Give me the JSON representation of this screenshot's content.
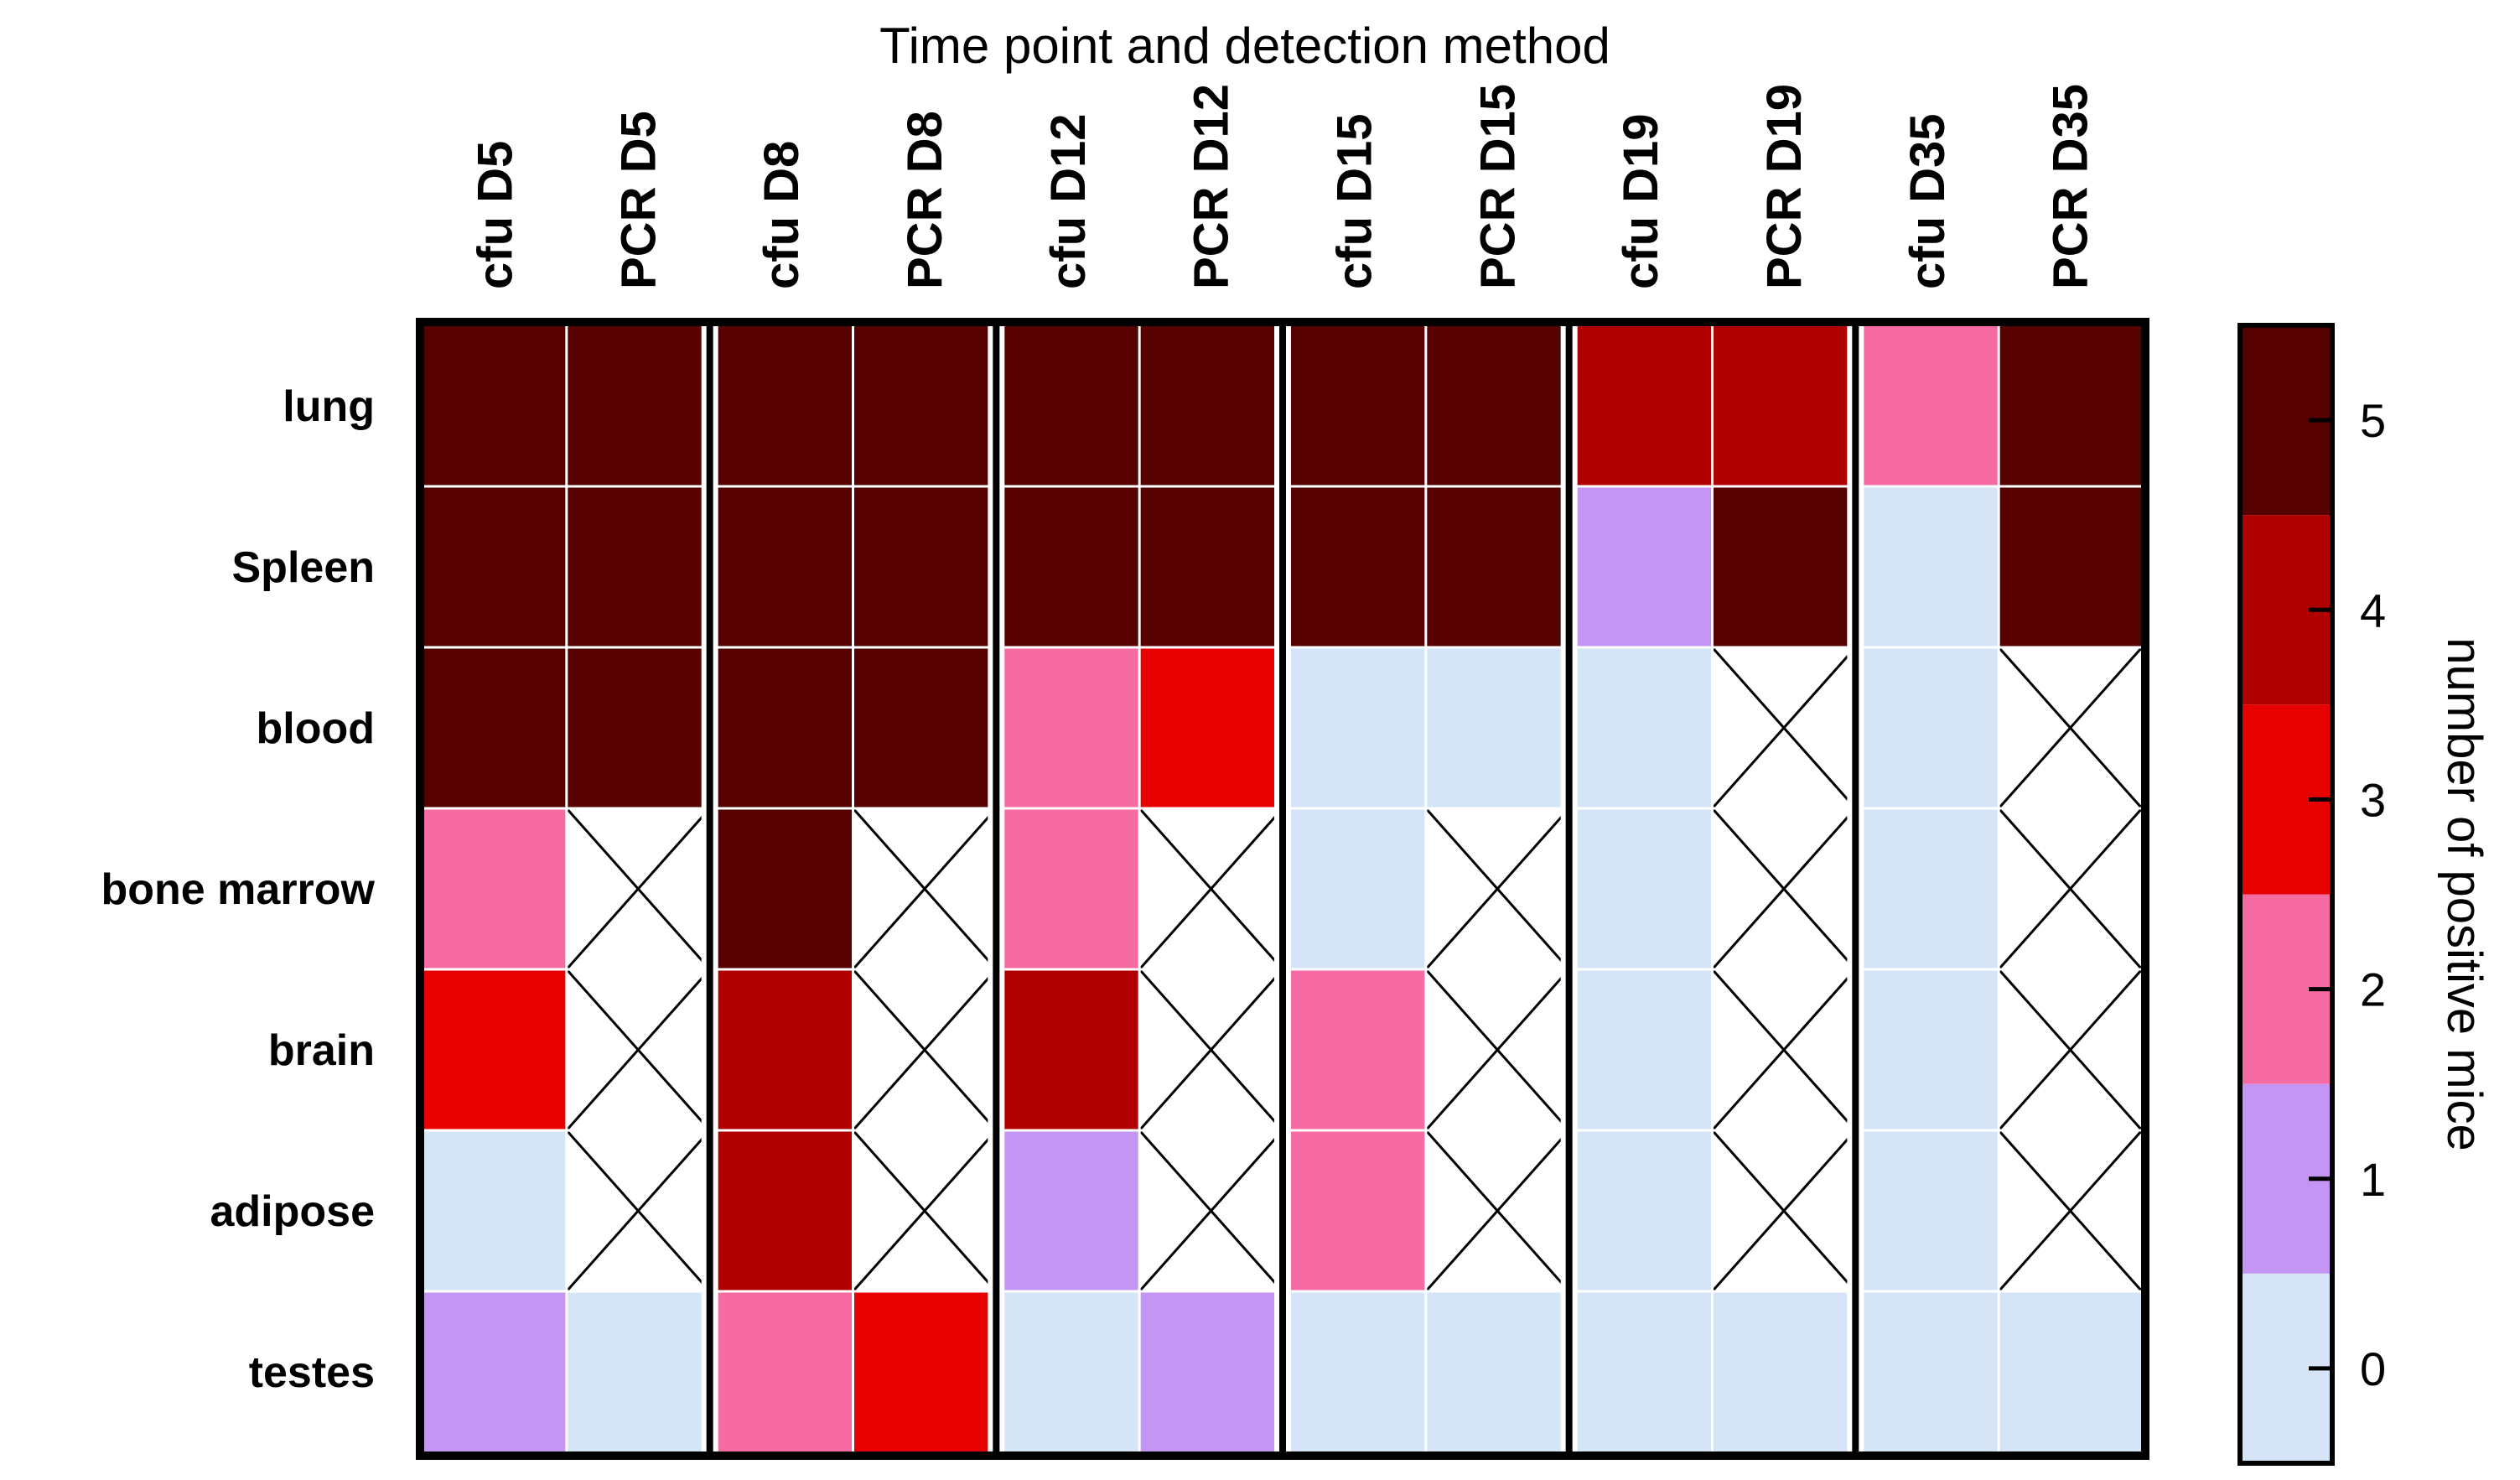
{
  "chart_data": {
    "type": "heatmap",
    "title": "Time point and detection method",
    "columns": [
      "cfu D5",
      "PCR D5",
      "cfu D8",
      "PCR D8",
      "cfu D12",
      "PCR D12",
      "cfu D15",
      "PCR D15",
      "cfu D19",
      "PCR D19",
      "cfu D35",
      "PCR D35"
    ],
    "rows": [
      "lung",
      "Spleen",
      "blood",
      "bone marrow",
      "brain",
      "adipose",
      "testes"
    ],
    "values": [
      [
        5,
        5,
        5,
        5,
        5,
        5,
        5,
        5,
        4,
        4,
        2,
        5
      ],
      [
        5,
        5,
        5,
        5,
        5,
        5,
        5,
        5,
        1,
        5,
        0,
        5
      ],
      [
        5,
        5,
        5,
        5,
        2,
        3,
        0,
        0,
        0,
        null,
        0,
        null
      ],
      [
        2,
        null,
        5,
        null,
        2,
        null,
        0,
        null,
        0,
        null,
        0,
        null
      ],
      [
        3,
        null,
        4,
        null,
        4,
        null,
        2,
        null,
        0,
        null,
        0,
        null
      ],
      [
        0,
        null,
        4,
        null,
        1,
        null,
        2,
        null,
        0,
        null,
        0,
        null
      ],
      [
        1,
        0,
        2,
        3,
        0,
        1,
        0,
        0,
        0,
        0,
        0,
        0
      ]
    ],
    "missing_marker": "X (not tested)",
    "colorbar": {
      "label": "number of positive mice",
      "ticks": [
        "0",
        "1",
        "2",
        "3",
        "4",
        "5"
      ],
      "range": [
        0,
        5
      ],
      "colors": [
        "#d6e4f7",
        "#c495f2",
        "#f76ba3",
        "#e70000",
        "#b10000",
        "#560000"
      ]
    },
    "group_size": 2
  }
}
